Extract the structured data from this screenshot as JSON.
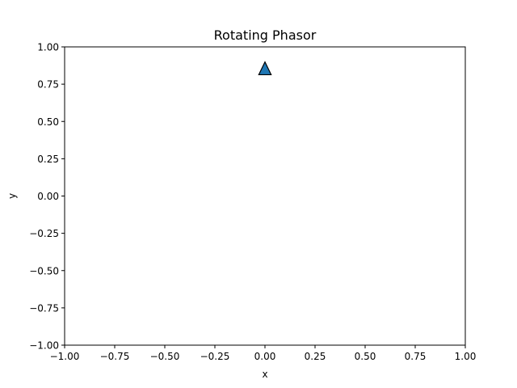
{
  "chart_data": {
    "type": "scatter",
    "title": "Rotating Phasor",
    "xlabel": "x",
    "ylabel": "y",
    "xlim": [
      -1.0,
      1.0
    ],
    "ylim": [
      -1.0,
      1.0
    ],
    "xticks": [
      -1.0,
      -0.75,
      -0.5,
      -0.25,
      0.0,
      0.25,
      0.5,
      0.75,
      1.0
    ],
    "yticks": [
      -1.0,
      -0.75,
      -0.5,
      -0.25,
      0.0,
      0.25,
      0.5,
      0.75,
      1.0
    ],
    "xtick_labels": [
      "−1.00",
      "−0.75",
      "−0.50",
      "−0.25",
      "0.00",
      "0.25",
      "0.50",
      "0.75",
      "1.00"
    ],
    "ytick_labels": [
      "−1.00",
      "−0.75",
      "−0.50",
      "−0.25",
      "0.00",
      "0.25",
      "0.50",
      "0.75",
      "1.00"
    ],
    "grid": false,
    "points": [
      {
        "x": 0.0,
        "y": 0.85,
        "marker": "triangle-up",
        "color": "#1f77b4",
        "edgecolor": "#000000"
      }
    ]
  }
}
